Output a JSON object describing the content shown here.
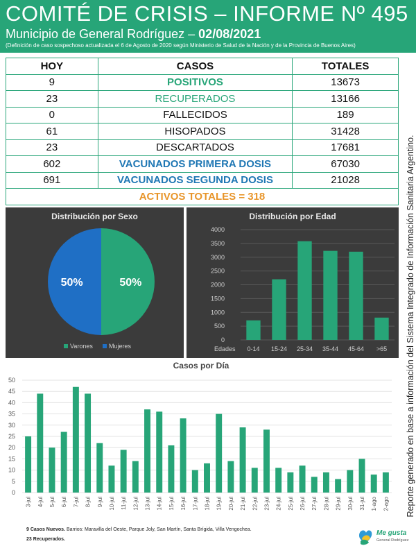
{
  "header": {
    "title": "COMITÉ DE CRISIS – INFORME Nº 495",
    "subtitle_prefix": "Municipio de General Rodríguez –",
    "date": "02/08/2021",
    "note": "(Definición de caso sospechoso actualizada el 6 de Agosto de 2020 según Ministerio de Salud de la Nación y de la Provincia de Buenos Aires)"
  },
  "cases_table": {
    "headers": {
      "today": "HOY",
      "cases": "CASOS",
      "totals": "TOTALES"
    },
    "rows": [
      {
        "today": "9",
        "label": "POSITIVOS",
        "total": "13673"
      },
      {
        "today": "23",
        "label": "RECUPERADOS",
        "total": "13166"
      },
      {
        "today": "0",
        "label": "FALLECIDOS",
        "total": "189"
      },
      {
        "today": "61",
        "label": "HISOPADOS",
        "total": "31428"
      },
      {
        "today": "23",
        "label": "DESCARTADOS",
        "total": "17681"
      },
      {
        "today": "602",
        "label": "VACUNADOS PRIMERA DOSIS",
        "total": "67030"
      },
      {
        "today": "691",
        "label": "VACUNADOS SEGUNDA DOSIS",
        "total": "21028"
      }
    ],
    "active_totals": "ACTIVOS TOTALES = 318"
  },
  "side_note": "Reporte generado en base a información del Sistema Integrado de Información Sanitaria Argentino.",
  "chart_data": [
    {
      "type": "pie",
      "title": "Distribución por Sexo",
      "labels": [
        "Varones",
        "Mujeres"
      ],
      "values": [
        50,
        50
      ],
      "value_labels": [
        "50%",
        "50%"
      ],
      "colors": [
        "#27a578",
        "#1f6fc5"
      ],
      "legend": "bottom"
    },
    {
      "type": "bar",
      "title": "Distribución por Edad",
      "x_axis_label": "Edades",
      "categories": [
        "0-14",
        "15-24",
        "25-34",
        "35-44",
        "45-64",
        ">65"
      ],
      "values": [
        710,
        2200,
        3580,
        3230,
        3200,
        810
      ],
      "ylim": [
        0,
        4000
      ],
      "yticks": [
        0,
        500,
        1000,
        1500,
        2000,
        2500,
        3000,
        3500,
        4000
      ],
      "color": "#27a578",
      "grid": true
    },
    {
      "type": "bar",
      "title": "Casos por Día",
      "categories": [
        "3-jul",
        "4-jul",
        "5-jul",
        "6-jul",
        "7-jul",
        "8-jul",
        "9-jul",
        "10-jul",
        "11-jul",
        "12-jul",
        "13-jul",
        "14-jul",
        "15-jul",
        "16-jul",
        "17-jul",
        "18-jul",
        "19-jul",
        "20-jul",
        "21-jul",
        "22-jul",
        "23-jul",
        "24-jul",
        "25-jul",
        "26-jul",
        "27-jul",
        "28-jul",
        "29-jul",
        "30-jul",
        "31-jul",
        "1-ago",
        "2-ago"
      ],
      "values": [
        25,
        44,
        20,
        27,
        47,
        44,
        22,
        12,
        19,
        14,
        37,
        36,
        21,
        33,
        10,
        13,
        35,
        14,
        29,
        11,
        28,
        11,
        9,
        12,
        7,
        9,
        6,
        10,
        15,
        8,
        9
      ],
      "ylim": [
        0,
        50
      ],
      "yticks": [
        0,
        5,
        10,
        15,
        20,
        25,
        30,
        35,
        40,
        45,
        50
      ],
      "color": "#27a578",
      "grid": true
    }
  ],
  "footer": {
    "new_cases_bold": "9 Casos Nuevos.",
    "new_cases_text": "Barrios: Maravilla del Oeste, Parque Joly, San Martín, Santa Brígida, Villa Vengochea.",
    "recovered": "23 Recuperados."
  },
  "logo": {
    "line1": "Me gusta",
    "line2": "General Rodríguez"
  }
}
